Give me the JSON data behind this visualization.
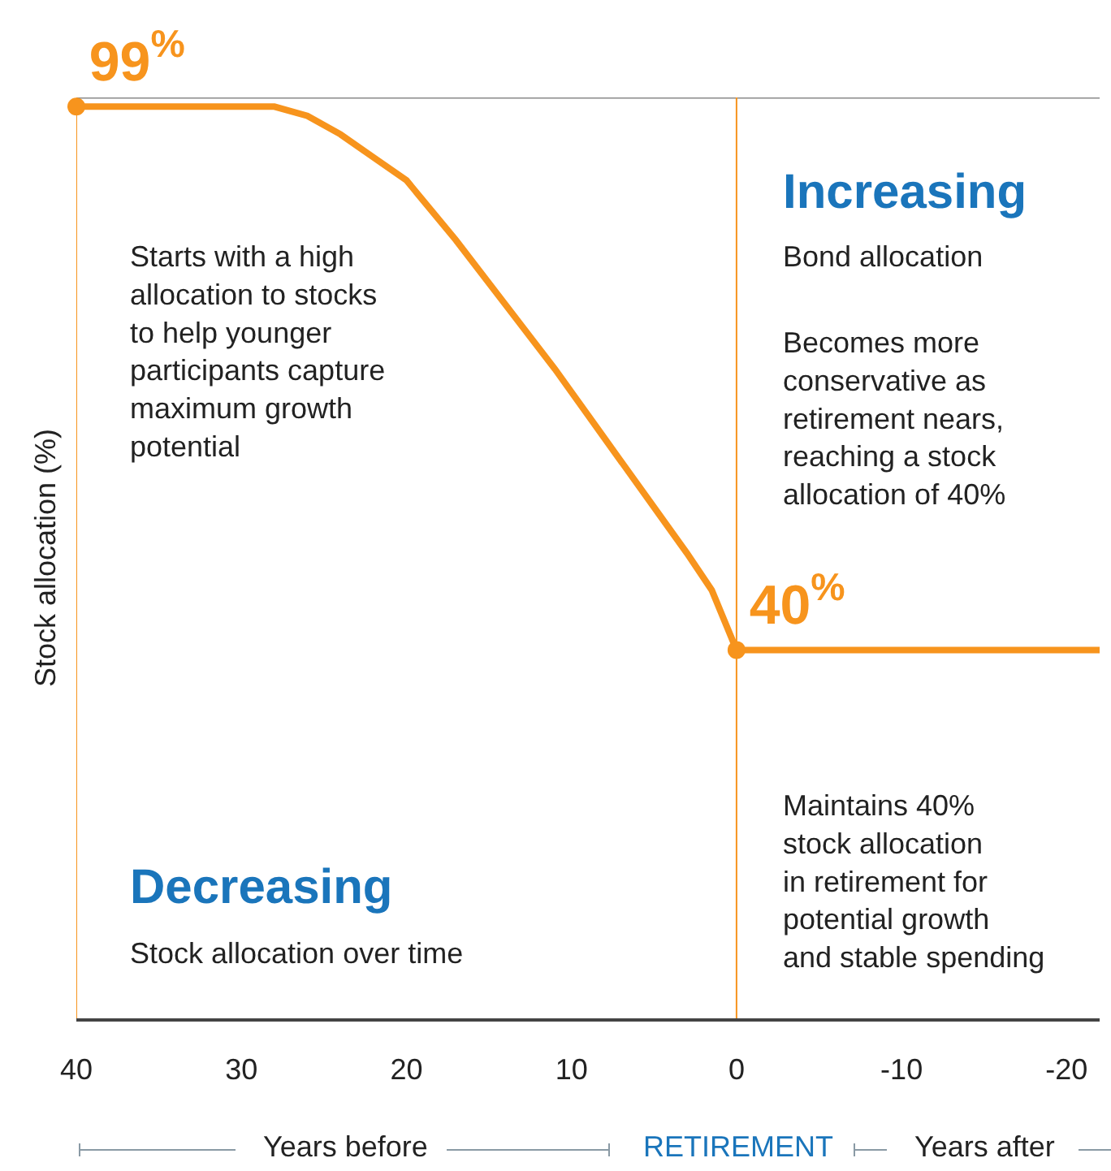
{
  "chart_data": {
    "type": "line",
    "ylabel": "Stock allocation (%)",
    "x": [
      40,
      35,
      30,
      28,
      26,
      24,
      22,
      20,
      17,
      14,
      11,
      8,
      5,
      3,
      1.5,
      0,
      -10,
      -22
    ],
    "series": [
      {
        "color": "#f7941d",
        "values": [
          99,
          99,
          99,
          99,
          98,
          96,
          93.5,
          91,
          84.5,
          77.5,
          70.5,
          63,
          55.5,
          50.5,
          46.5,
          40,
          40,
          40
        ]
      },
      {
        "type": "scatter",
        "color": "#f7941d",
        "x": [
          40,
          0
        ],
        "values": [
          99,
          40
        ],
        "value_labels": [
          "99$^{%}$",
          "40$^{%}$"
        ]
      }
    ],
    "xlim": [
      40,
      -22
    ],
    "xticks": [
      40,
      30,
      20,
      10,
      0,
      -10,
      -20
    ],
    "ylim": [
      0,
      100
    ],
    "tick_labels": "x",
    "grid": false,
    "line_style": "solid",
    "ref_lines": [
      {
        "axis": "x",
        "value": 40,
        "color": "#f7941d"
      },
      {
        "axis": "x",
        "value": 0,
        "color": "#f7941d"
      },
      {
        "axis": "y",
        "value": 100,
        "color": "#8a8a8a"
      }
    ],
    "annotations": [
      "Increasing",
      "Bond allocation",
      "Becomes more\nconservative as\nretirement nears,\nreaching a stock\nallocation of 40%",
      "Starts with a high\nallocation to stocks\nto help younger\nparticipants capture\nmaximum growth\npotential",
      "Decreasing",
      "Stock allocation over time",
      "Maintains 40%\nstock allocation\nin retirement for\npotential growth\nand stable spending",
      "Years before",
      "RETIREMENT",
      "Years after"
    ]
  }
}
